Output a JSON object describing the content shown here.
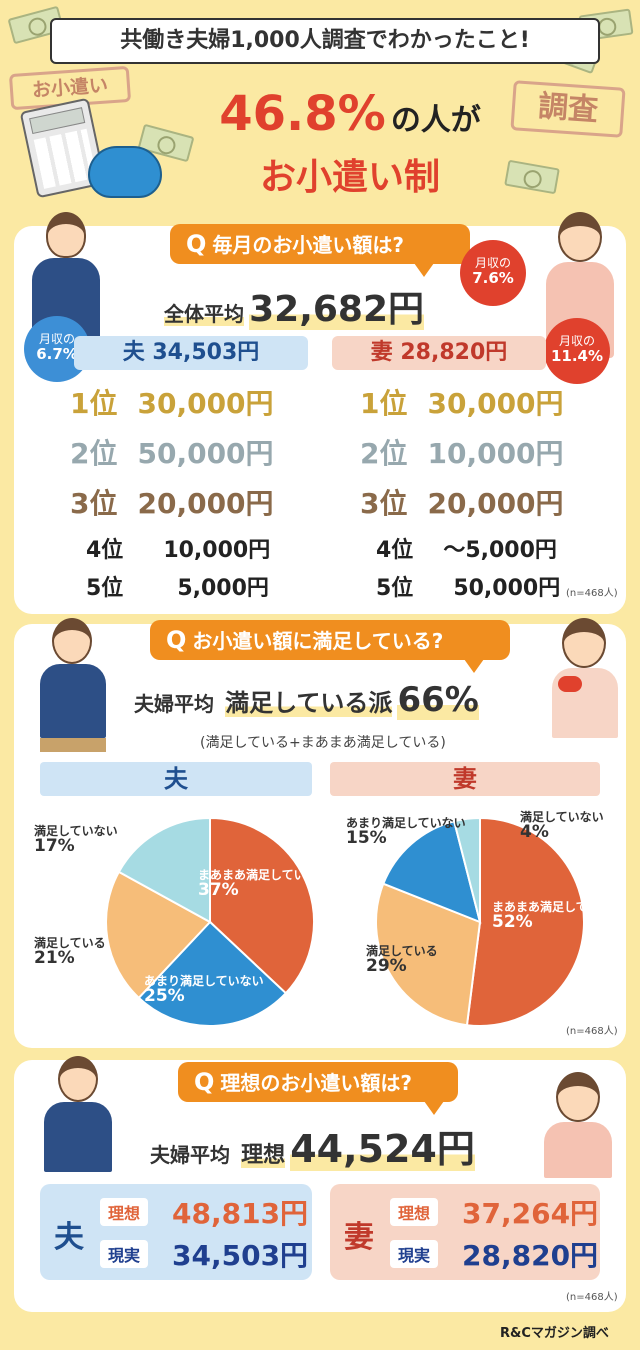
{
  "header": {
    "survey_title": "共働き夫婦1,000人調査でわかったこと!",
    "headline_number": "46.8%",
    "headline_text1": "の人が",
    "headline_text2": "お小遣い制",
    "stamp_left": "お小遣い",
    "stamp_right": "調査"
  },
  "section1": {
    "question": "毎月のお小遣い額は?",
    "overall_label": "全体平均",
    "overall_value": "32,682円",
    "husband": {
      "label": "夫 34,503円",
      "badge_title": "月収の",
      "badge_value": "6.7%",
      "ranks": [
        {
          "rank": "1位",
          "amount": "30,000円"
        },
        {
          "rank": "2位",
          "amount": "50,000円"
        },
        {
          "rank": "3位",
          "amount": "20,000円"
        },
        {
          "rank": "4位",
          "amount": "10,000円"
        },
        {
          "rank": "5位",
          "amount": "5,000円"
        }
      ]
    },
    "wife": {
      "label": "妻 28,820円",
      "badge_title": "月収の",
      "badge_value": "11.4%",
      "badge2_title": "月収の",
      "badge2_value": "7.6%",
      "ranks": [
        {
          "rank": "1位",
          "amount": "30,000円"
        },
        {
          "rank": "2位",
          "amount": "10,000円"
        },
        {
          "rank": "3位",
          "amount": "20,000円"
        },
        {
          "rank": "4位",
          "amount": "〜5,000円"
        },
        {
          "rank": "5位",
          "amount": "50,000円"
        }
      ]
    },
    "n_note": "(n=468人)"
  },
  "section2": {
    "question": "お小遣い額に満足している?",
    "summary_label": "夫婦平均",
    "summary_text": "満足している派",
    "summary_value": "66%",
    "summary_note": "(満足している+まあまあ満足している)",
    "husband_tab": "夫",
    "wife_tab": "妻",
    "n_note": "(n=468人)"
  },
  "chart_data": [
    {
      "type": "pie",
      "title": "夫",
      "labels": [
        "まあまあ満足している",
        "あまり満足していない",
        "満足している",
        "満足していない"
      ],
      "values": [
        37,
        25,
        21,
        17
      ],
      "colors": [
        "#e0643a",
        "#2f8fd1",
        "#f6bd79",
        "#a6dbe3"
      ],
      "value_labels": [
        "37%",
        "25%",
        "21%",
        "17%"
      ]
    },
    {
      "type": "pie",
      "title": "妻",
      "labels": [
        "まあまあ満足している",
        "満足している",
        "あまり満足していない",
        "満足していない"
      ],
      "values": [
        52,
        29,
        15,
        4
      ],
      "colors": [
        "#e0643a",
        "#f6bd79",
        "#2f8fd1",
        "#a6dbe3"
      ],
      "value_labels": [
        "52%",
        "29%",
        "15%",
        "4%"
      ]
    }
  ],
  "section3": {
    "question": "理想のお小遣い額は?",
    "summary_label": "夫婦平均",
    "summary_text": "理想",
    "summary_value": "44,524円",
    "husband": {
      "label": "夫",
      "ideal_label": "理想",
      "ideal_value": "48,813円",
      "actual_label": "現実",
      "actual_value": "34,503円"
    },
    "wife": {
      "label": "妻",
      "ideal_label": "理想",
      "ideal_value": "37,264円",
      "actual_label": "現実",
      "actual_value": "28,820円"
    },
    "n_note": "(n=468人)"
  },
  "footer": {
    "source": "R&Cマガジン調べ"
  },
  "colors": {
    "accent_orange": "#f08e1f",
    "husband_blue": "#cfe4f5",
    "wife_pink": "#f7d5c6",
    "title_red": "#e0412d"
  }
}
